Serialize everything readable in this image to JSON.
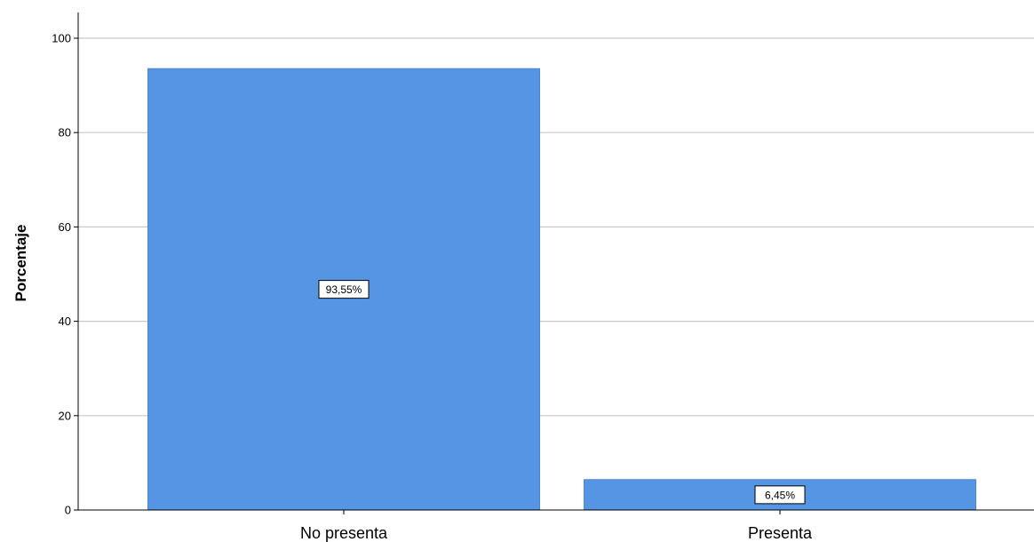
{
  "chart_data": {
    "type": "bar",
    "title": "",
    "xlabel": "",
    "ylabel": "Porcentaje",
    "categories": [
      "No presenta",
      "Presenta"
    ],
    "values": [
      93.55,
      6.45
    ],
    "data_labels": [
      "93,55%",
      "6,45%"
    ],
    "ylim": [
      0,
      105
    ],
    "yticks": [
      0,
      20,
      40,
      60,
      80,
      100
    ],
    "ytick_labels": [
      "0",
      "20",
      "40",
      "60",
      "80",
      "100"
    ],
    "grid": true,
    "legend": "none",
    "bar_color": "#5694e4"
  }
}
